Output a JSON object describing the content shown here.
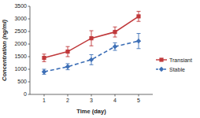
{
  "chart_data": {
    "type": "line",
    "x_label": "Time (day)",
    "y_label": "Concentration (ng/ml)",
    "x": [
      1,
      2,
      3,
      4,
      5
    ],
    "series": [
      {
        "name": "Transiant",
        "color": "#c0393b",
        "marker": "square",
        "line_style": "solid",
        "values": [
          1450,
          1700,
          2230,
          2480,
          3100
        ],
        "errors": [
          150,
          200,
          300,
          200,
          200
        ]
      },
      {
        "name": "Stable",
        "color": "#3d6fb6",
        "marker": "diamond",
        "line_style": "dashed",
        "values": [
          900,
          1100,
          1380,
          1900,
          2120
        ],
        "errors": [
          100,
          120,
          200,
          150,
          300
        ]
      }
    ],
    "xlim": [
      0.4,
      5.6
    ],
    "xticks": [
      1,
      2,
      3,
      4,
      5
    ],
    "ylim": [
      0,
      3500
    ],
    "yticks": [
      0,
      500,
      1000,
      1500,
      2000,
      2500,
      3000,
      3500
    ],
    "grid": false,
    "legend": "right"
  }
}
